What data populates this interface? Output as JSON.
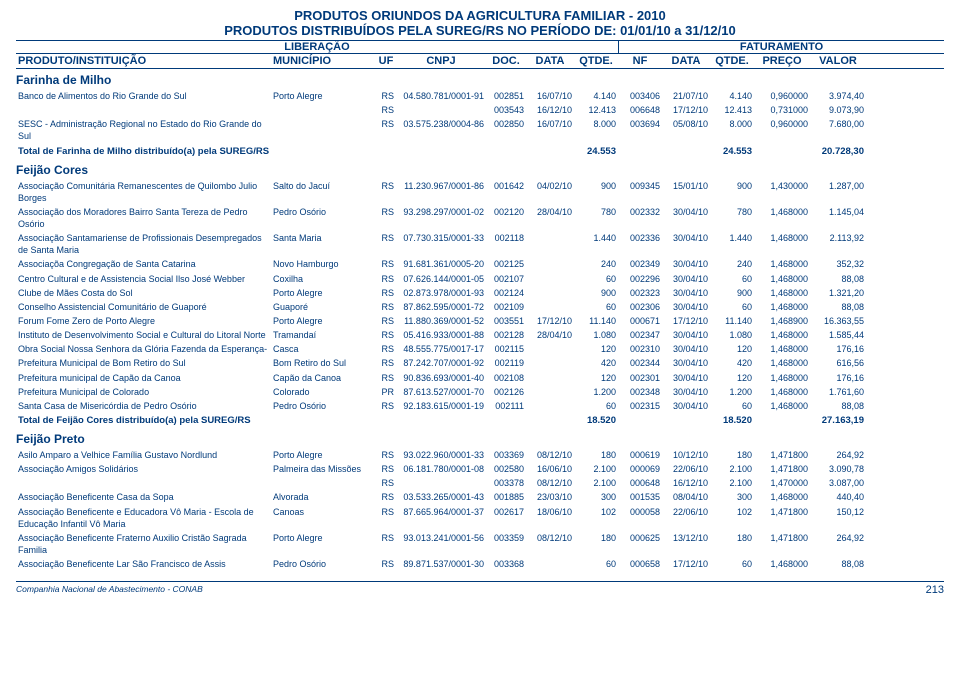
{
  "title1": "PRODUTOS ORIUNDOS DA AGRICULTURA FAMILIAR - 2010",
  "title2": "PRODUTOS DISTRIBUÍDOS PELA SUREG/RS NO PERÍODO DE: 01/01/10 a 31/12/10",
  "header": {
    "liberacao": "LIBERAÇÃO",
    "faturamento": "FATURAMENTO",
    "cols": {
      "produto": "PRODUTO/INSTITUIÇÃO",
      "municipio": "MUNICÍPIO",
      "uf": "UF",
      "cnpj": "CNPJ",
      "doc": "DOC.",
      "data": "DATA",
      "qtde": "QTDE.",
      "nf": "NF",
      "data2": "DATA",
      "qtde2": "QTDE.",
      "preco": "PREÇO",
      "valor": "VALOR"
    }
  },
  "sections": [
    {
      "name": "Farinha de Milho",
      "rows": [
        {
          "prod": "Banco de Alimentos do Rio Grande do Sul",
          "mun": "Porto Alegre",
          "uf": "RS",
          "cnpj": "04.580.781/0001-91",
          "doc": "002851",
          "data": "16/07/10",
          "qtde": "4.140",
          "nf": "003406",
          "data2": "21/07/10",
          "qtde2": "4.140",
          "preco": "0,960000",
          "valor": "3.974,40"
        },
        {
          "prod": "",
          "mun": "",
          "uf": "RS",
          "cnpj": "",
          "doc": "003543",
          "data": "16/12/10",
          "qtde": "12.413",
          "nf": "006648",
          "data2": "17/12/10",
          "qtde2": "12.413",
          "preco": "0,731000",
          "valor": "9.073,90"
        },
        {
          "prod": "SESC - Administração Regional no Estado do Rio Grande do Sul",
          "mun": "",
          "uf": "RS",
          "cnpj": "03.575.238/0004-86",
          "doc": "002850",
          "data": "16/07/10",
          "qtde": "8.000",
          "nf": "003694",
          "data2": "05/08/10",
          "qtde2": "8.000",
          "preco": "0,960000",
          "valor": "7.680,00"
        }
      ],
      "total": {
        "label": "Total de Farinha de Milho distribuído(a) pela SUREG/RS",
        "qtde": "24.553",
        "qtde2": "24.553",
        "valor": "20.728,30"
      }
    },
    {
      "name": "Feijão Cores",
      "rows": [
        {
          "prod": "Associação Comunitária Remanescentes de Quilombo Julio Borges",
          "mun": "Salto do Jacuí",
          "uf": "RS",
          "cnpj": "11.230.967/0001-86",
          "doc": "001642",
          "data": "04/02/10",
          "qtde": "900",
          "nf": "009345",
          "data2": "15/01/10",
          "qtde2": "900",
          "preco": "1,430000",
          "valor": "1.287,00"
        },
        {
          "prod": "Associação dos Moradores Bairro Santa Tereza de Pedro Osório",
          "mun": "Pedro Osório",
          "uf": "RS",
          "cnpj": "93.298.297/0001-02",
          "doc": "002120",
          "data": "28/04/10",
          "qtde": "780",
          "nf": "002332",
          "data2": "30/04/10",
          "qtde2": "780",
          "preco": "1,468000",
          "valor": "1.145,04"
        },
        {
          "prod": "Associação Santamariense de Profissionais Desempregados de Santa Maria",
          "mun": "Santa Maria",
          "uf": "RS",
          "cnpj": "07.730.315/0001-33",
          "doc": "002118",
          "data": "",
          "qtde": "1.440",
          "nf": "002336",
          "data2": "30/04/10",
          "qtde2": "1.440",
          "preco": "1,468000",
          "valor": "2.113,92"
        },
        {
          "prod": "Associaçõa Congregação de Santa Catarina",
          "mun": "Novo Hamburgo",
          "uf": "RS",
          "cnpj": "91.681.361/0005-20",
          "doc": "002125",
          "data": "",
          "qtde": "240",
          "nf": "002349",
          "data2": "30/04/10",
          "qtde2": "240",
          "preco": "1,468000",
          "valor": "352,32"
        },
        {
          "prod": "Centro Cultural e de Assistencia Social Ilso José Webber",
          "mun": "Coxilha",
          "uf": "RS",
          "cnpj": "07.626.144/0001-05",
          "doc": "002107",
          "data": "",
          "qtde": "60",
          "nf": "002296",
          "data2": "30/04/10",
          "qtde2": "60",
          "preco": "1,468000",
          "valor": "88,08"
        },
        {
          "prod": "Clube de Mães Costa do Sol",
          "mun": "Porto Alegre",
          "uf": "RS",
          "cnpj": "02.873.978/0001-93",
          "doc": "002124",
          "data": "",
          "qtde": "900",
          "nf": "002323",
          "data2": "30/04/10",
          "qtde2": "900",
          "preco": "1,468000",
          "valor": "1.321,20"
        },
        {
          "prod": "Conselho Assistencial Comunitário de Guaporé",
          "mun": "Guaporé",
          "uf": "RS",
          "cnpj": "87.862.595/0001-72",
          "doc": "002109",
          "data": "",
          "qtde": "60",
          "nf": "002306",
          "data2": "30/04/10",
          "qtde2": "60",
          "preco": "1,468000",
          "valor": "88,08"
        },
        {
          "prod": "Forum Fome Zero de Porto Alegre",
          "mun": "Porto Alegre",
          "uf": "RS",
          "cnpj": "11.880.369/0001-52",
          "doc": "003551",
          "data": "17/12/10",
          "qtde": "11.140",
          "nf": "000671",
          "data2": "17/12/10",
          "qtde2": "11.140",
          "preco": "1,468900",
          "valor": "16.363,55"
        },
        {
          "prod": "Instituto de Desenvolvimento Social e Cultural do Litoral Norte",
          "mun": "Tramandaí",
          "uf": "RS",
          "cnpj": "05.416.933/0001-88",
          "doc": "002128",
          "data": "28/04/10",
          "qtde": "1.080",
          "nf": "002347",
          "data2": "30/04/10",
          "qtde2": "1.080",
          "preco": "1,468000",
          "valor": "1.585,44"
        },
        {
          "prod": "Obra Social Nossa Senhora da Glória Fazenda da Esperança-",
          "mun": "Casca",
          "uf": "RS",
          "cnpj": "48.555.775/0017-17",
          "doc": "002115",
          "data": "",
          "qtde": "120",
          "nf": "002310",
          "data2": "30/04/10",
          "qtde2": "120",
          "preco": "1,468000",
          "valor": "176,16"
        },
        {
          "prod": "Prefeitura Municipal de Bom Retiro do Sul",
          "mun": "Bom Retiro do Sul",
          "uf": "RS",
          "cnpj": "87.242.707/0001-92",
          "doc": "002119",
          "data": "",
          "qtde": "420",
          "nf": "002344",
          "data2": "30/04/10",
          "qtde2": "420",
          "preco": "1,468000",
          "valor": "616,56"
        },
        {
          "prod": "Prefeitura municipal de Capão da Canoa",
          "mun": "Capão da Canoa",
          "uf": "RS",
          "cnpj": "90.836.693/0001-40",
          "doc": "002108",
          "data": "",
          "qtde": "120",
          "nf": "002301",
          "data2": "30/04/10",
          "qtde2": "120",
          "preco": "1,468000",
          "valor": "176,16"
        },
        {
          "prod": "Prefeitura Municipal de Colorado",
          "mun": "Colorado",
          "uf": "PR",
          "cnpj": "87.613.527/0001-70",
          "doc": "002126",
          "data": "",
          "qtde": "1.200",
          "nf": "002348",
          "data2": "30/04/10",
          "qtde2": "1.200",
          "preco": "1,468000",
          "valor": "1.761,60"
        },
        {
          "prod": "Santa Casa de Misericórdia de Pedro Osório",
          "mun": "Pedro Osório",
          "uf": "RS",
          "cnpj": "92.183.615/0001-19",
          "doc": "002111",
          "data": "",
          "qtde": "60",
          "nf": "002315",
          "data2": "30/04/10",
          "qtde2": "60",
          "preco": "1,468000",
          "valor": "88,08"
        }
      ],
      "total": {
        "label": "Total de Feijão Cores distribuído(a) pela SUREG/RS",
        "qtde": "18.520",
        "qtde2": "18.520",
        "valor": "27.163,19"
      }
    },
    {
      "name": "Feijão Preto",
      "rows": [
        {
          "prod": "Asilo Amparo a Velhice Família Gustavo Nordlund",
          "mun": "Porto Alegre",
          "uf": "RS",
          "cnpj": "93.022.960/0001-33",
          "doc": "003369",
          "data": "08/12/10",
          "qtde": "180",
          "nf": "000619",
          "data2": "10/12/10",
          "qtde2": "180",
          "preco": "1,471800",
          "valor": "264,92"
        },
        {
          "prod": "Associação Amigos Solidários",
          "mun": "Palmeira das Missões",
          "uf": "RS",
          "cnpj": "06.181.780/0001-08",
          "doc": "002580",
          "data": "16/06/10",
          "qtde": "2.100",
          "nf": "000069",
          "data2": "22/06/10",
          "qtde2": "2.100",
          "preco": "1,471800",
          "valor": "3.090,78"
        },
        {
          "prod": "",
          "mun": "",
          "uf": "RS",
          "cnpj": "",
          "doc": "003378",
          "data": "08/12/10",
          "qtde": "2.100",
          "nf": "000648",
          "data2": "16/12/10",
          "qtde2": "2.100",
          "preco": "1,470000",
          "valor": "3.087,00"
        },
        {
          "prod": "Associação Beneficente Casa da Sopa",
          "mun": "Alvorada",
          "uf": "RS",
          "cnpj": "03.533.265/0001-43",
          "doc": "001885",
          "data": "23/03/10",
          "qtde": "300",
          "nf": "001535",
          "data2": "08/04/10",
          "qtde2": "300",
          "preco": "1,468000",
          "valor": "440,40"
        },
        {
          "prod": "Associação Beneficente e Educadora Vô Maria - Escola de Educação Infantil Vô Maria",
          "mun": "Canoas",
          "uf": "RS",
          "cnpj": "87.665.964/0001-37",
          "doc": "002617",
          "data": "18/06/10",
          "qtde": "102",
          "nf": "000058",
          "data2": "22/06/10",
          "qtde2": "102",
          "preco": "1,471800",
          "valor": "150,12"
        },
        {
          "prod": "Associação Beneficente Fraterno Auxilio Cristão Sagrada Familia",
          "mun": "Porto Alegre",
          "uf": "RS",
          "cnpj": "93.013.241/0001-56",
          "doc": "003359",
          "data": "08/12/10",
          "qtde": "180",
          "nf": "000625",
          "data2": "13/12/10",
          "qtde2": "180",
          "preco": "1,471800",
          "valor": "264,92"
        },
        {
          "prod": "Associação Beneficente Lar São Francisco de Assis",
          "mun": "Pedro Osório",
          "uf": "RS",
          "cnpj": "89.871.537/0001-30",
          "doc": "003368",
          "data": "",
          "qtde": "60",
          "nf": "000658",
          "data2": "17/12/10",
          "qtde2": "60",
          "preco": "1,468000",
          "valor": "88,08"
        }
      ]
    }
  ],
  "footer": {
    "company": "Companhia Nacional de Abastecimento - CONAB",
    "page": "213"
  }
}
